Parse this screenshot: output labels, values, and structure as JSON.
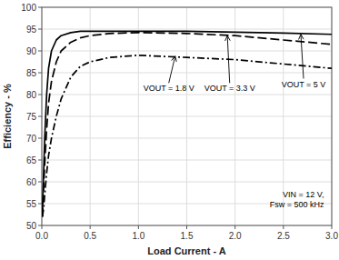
{
  "chart_data": {
    "type": "line",
    "xlabel": "Load Current - A",
    "ylabel": "Efficiency - %",
    "xlim": [
      0,
      3
    ],
    "ylim": [
      50,
      100
    ],
    "xticks": [
      {
        "value": 0,
        "label": "0.0"
      },
      0.5,
      {
        "value": 1.0,
        "label": "1.0"
      },
      1.5,
      {
        "value": 2.0,
        "label": "2.0"
      },
      2.5,
      {
        "value": 3.0,
        "label": "3.0"
      }
    ],
    "yticks": [
      50,
      55,
      60,
      65,
      70,
      75,
      80,
      85,
      90,
      95,
      100
    ],
    "grid": true,
    "x": [
      0.005,
      0.01,
      0.02,
      0.03,
      0.05,
      0.07,
      0.1,
      0.15,
      0.2,
      0.3,
      0.4,
      0.5,
      0.7,
      1.0,
      1.5,
      2.0,
      2.5,
      3.0
    ],
    "series": [
      {
        "color": "#000000",
        "line_style": "solid",
        "values": [
          52.0,
          56.0,
          63.0,
          70.0,
          80.0,
          86.0,
          90.0,
          92.5,
          93.5,
          94.2,
          94.5,
          94.5,
          94.5,
          94.5,
          94.5,
          94.3,
          94.1,
          93.8
        ]
      },
      {
        "color": "#000000",
        "line_style": "dashed",
        "values": [
          52.0,
          54.0,
          59.0,
          64.0,
          72.0,
          78.0,
          83.0,
          87.5,
          90.0,
          92.0,
          93.0,
          93.5,
          94.0,
          94.2,
          94.0,
          93.5,
          92.5,
          91.5
        ]
      },
      {
        "color": "#000000",
        "line_style": "dashdot",
        "values": [
          52.0,
          52.5,
          54.0,
          57.0,
          62.0,
          66.0,
          70.0,
          75.0,
          79.0,
          84.0,
          86.5,
          87.5,
          88.5,
          89.0,
          88.5,
          88.0,
          87.0,
          86.0
        ]
      }
    ],
    "annotations": [
      {
        "text": "VOUT = 1.8 V",
        "x": 1.05,
        "y": 81.5,
        "arrow_x": 1.38,
        "arrow_y": 88.8
      },
      {
        "text": "VOUT = 3.3 V",
        "x": 1.68,
        "y": 81.5,
        "arrow_x": 1.92,
        "arrow_y": 93.5
      },
      {
        "text": "VOUT = 5 V",
        "x": 2.48,
        "y": 82.5,
        "arrow_x": 2.68,
        "arrow_y": 93.8
      },
      {
        "text": "VIN = 12 V,\nFsw = 500 kHz",
        "x": 2.92,
        "y": 53.5
      }
    ]
  }
}
